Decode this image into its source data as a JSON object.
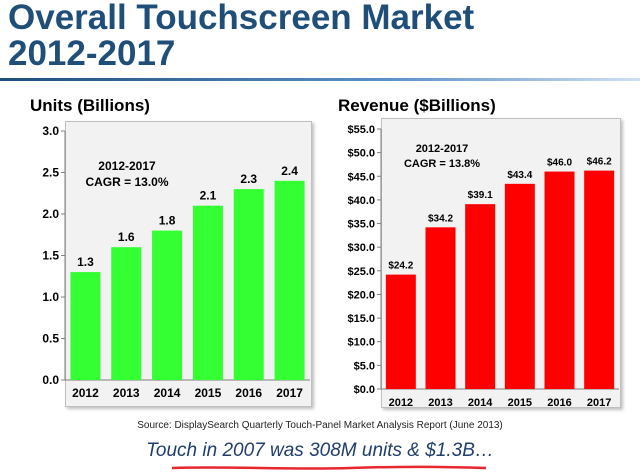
{
  "page": {
    "title_line1": "Overall Touchscreen Market",
    "title_line2": "2012-2017",
    "source": "Source: DisplaySearch Quarterly Touch-Panel Market Analysis Report (June 2013)",
    "footer": "Touch in 2007 was 308M units & $1.3B…"
  },
  "colors": {
    "title": "#1f4e79",
    "units_bar": "#33ff33",
    "revenue_bar": "#ff0000",
    "footer_underline": "#e8262d"
  },
  "chart_data": [
    {
      "type": "bar",
      "title": "Units (Billions)",
      "categories": [
        "2012",
        "2013",
        "2014",
        "2015",
        "2016",
        "2017"
      ],
      "values": [
        1.3,
        1.6,
        1.8,
        2.1,
        2.3,
        2.4
      ],
      "value_labels": [
        "1.3",
        "1.6",
        "1.8",
        "2.1",
        "2.3",
        "2.4"
      ],
      "ylim": [
        0,
        3.0
      ],
      "yticks": [
        "0.0",
        "0.5",
        "1.0",
        "1.5",
        "2.0",
        "2.5",
        "3.0"
      ],
      "annotation_line1": "2012-2017",
      "annotation_line2": "CAGR = 13.0%",
      "grid": false
    },
    {
      "type": "bar",
      "title": "Revenue ($Billions)",
      "categories": [
        "2012",
        "2013",
        "2014",
        "2015",
        "2016",
        "2017"
      ],
      "values": [
        24.2,
        34.2,
        39.1,
        43.4,
        46.0,
        46.2
      ],
      "value_labels": [
        "$24.2",
        "$34.2",
        "$39.1",
        "$43.4",
        "$46.0",
        "$46.2"
      ],
      "ylim": [
        0,
        55
      ],
      "yticks": [
        "$0.0",
        "$5.0",
        "$10.0",
        "$15.0",
        "$20.0",
        "$25.0",
        "$30.0",
        "$35.0",
        "$40.0",
        "$45.0",
        "$50.0",
        "$55.0"
      ],
      "annotation_line1": "2012-2017",
      "annotation_line2": "CAGR = 13.8%",
      "grid": false
    }
  ]
}
